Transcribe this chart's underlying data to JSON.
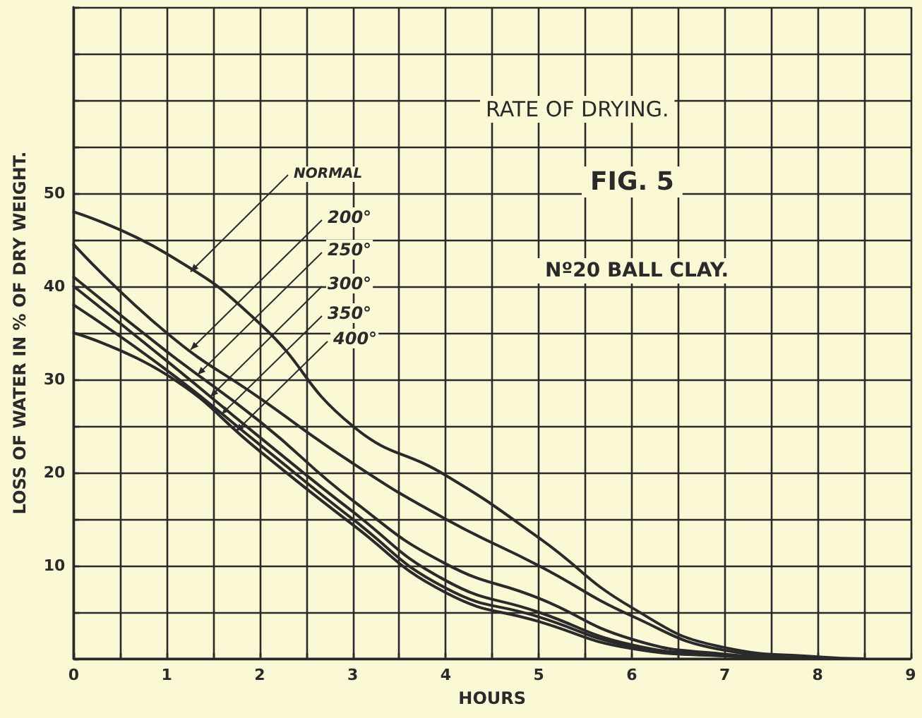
{
  "chart_data": {
    "type": "line",
    "title": "RATE OF DRYING.",
    "subtitle": "FIG. 5",
    "annotations": [
      "Nº20 BALL CLAY."
    ],
    "xlabel": "HOURS",
    "ylabel": "LOSS OF WATER IN % OF DRY WEIGHT.",
    "xlim": [
      0,
      9
    ],
    "ylim": [
      0,
      70
    ],
    "xticks": [
      0,
      {
        "value": 0.5,
        "label": null
      },
      1,
      {
        "value": 1.5,
        "label": null
      },
      2,
      {
        "value": 2.5,
        "label": null
      },
      3,
      {
        "value": 3.5,
        "label": null
      },
      4,
      {
        "value": 4.5,
        "label": null
      },
      5,
      {
        "value": 5.5,
        "label": null
      },
      6,
      {
        "value": 6.5,
        "label": null
      },
      7,
      {
        "value": 7.5,
        "label": null
      },
      8,
      {
        "value": 8.5,
        "label": null
      },
      9
    ],
    "yticks": [
      {
        "value": 0,
        "label": null
      },
      {
        "value": 5,
        "label": null
      },
      10,
      {
        "value": 15,
        "label": null
      },
      20,
      {
        "value": 25,
        "label": null
      },
      30,
      {
        "value": 35,
        "label": null
      },
      40,
      {
        "value": 45,
        "label": null
      },
      50,
      {
        "value": 55,
        "label": null
      },
      {
        "value": 60,
        "label": null
      },
      {
        "value": 65,
        "label": null
      },
      {
        "value": 70,
        "label": null
      }
    ],
    "grid": true,
    "legend": false,
    "marker": "none",
    "line_style": "solid",
    "series": [
      {
        "name": "NORMAL",
        "color": "#2a2a2a",
        "x": [
          0,
          1,
          2,
          3,
          4,
          5,
          6,
          7,
          8,
          8.5
        ],
        "values": [
          48,
          43.5,
          36,
          25,
          19.7,
          13,
          5.5,
          1.2,
          0.2,
          0
        ]
      },
      {
        "name": "200°",
        "color": "#2a2a2a",
        "x": [
          0,
          1,
          2,
          3,
          4,
          5,
          6,
          7,
          8
        ],
        "values": [
          44.5,
          35,
          28,
          21,
          15,
          10,
          4.6,
          0.9,
          0
        ]
      },
      {
        "name": "250°",
        "color": "#2a2a2a",
        "x": [
          0,
          1,
          2,
          3,
          4,
          5,
          6,
          7,
          8
        ],
        "values": [
          41,
          33,
          25.5,
          17,
          10.2,
          6.5,
          2.1,
          0.5,
          0
        ]
      },
      {
        "name": "300°",
        "color": "#2a2a2a",
        "x": [
          0,
          1,
          2,
          3,
          4,
          5,
          6,
          7,
          8
        ],
        "values": [
          40,
          32,
          23.8,
          15.8,
          8.4,
          5,
          1.5,
          0.4,
          0
        ]
      },
      {
        "name": "350°",
        "color": "#2a2a2a",
        "x": [
          0,
          1,
          2,
          3,
          4,
          5,
          6,
          7,
          8
        ],
        "values": [
          38,
          31,
          23,
          15,
          7.6,
          4.5,
          1.3,
          0.3,
          0
        ]
      },
      {
        "name": "400°",
        "color": "#2a2a2a",
        "x": [
          0,
          1,
          2,
          3,
          4,
          5,
          6,
          7,
          8
        ],
        "values": [
          35,
          30.5,
          22.3,
          14.4,
          7.1,
          4,
          1.1,
          0.3,
          0
        ]
      }
    ]
  }
}
